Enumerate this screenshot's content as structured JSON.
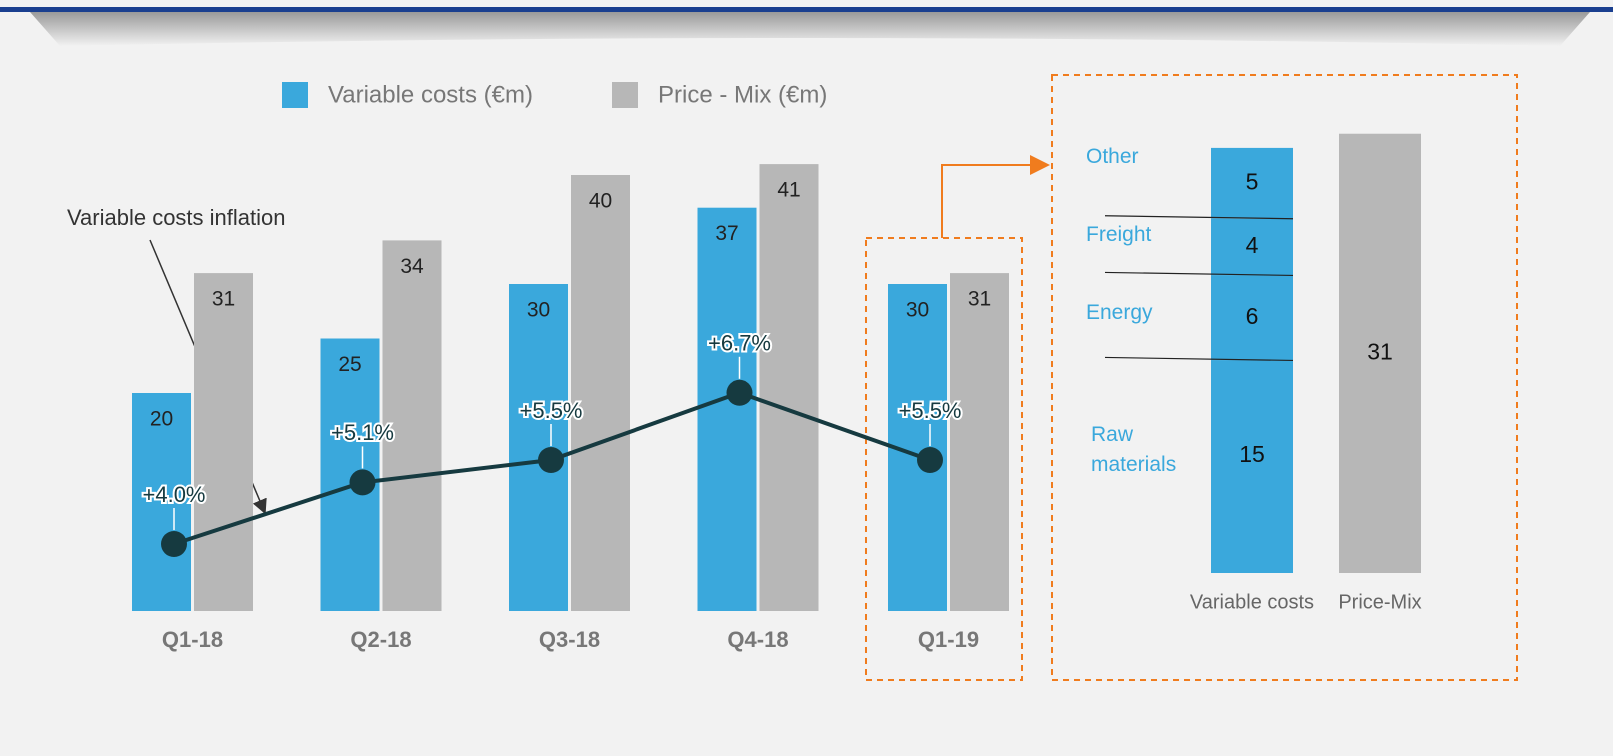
{
  "chart_data": [
    {
      "type": "bar",
      "categories": [
        "Q1-18",
        "Q2-18",
        "Q3-18",
        "Q4-18",
        "Q1-19"
      ],
      "series": [
        {
          "name": "Variable costs (€m)",
          "color": "#3aa8dc",
          "values": [
            20,
            25,
            30,
            37,
            30
          ]
        },
        {
          "name": "Price - Mix (€m)",
          "color": "#b7b7b7",
          "values": [
            31,
            34,
            40,
            41,
            31
          ]
        }
      ],
      "line": {
        "name": "Variable costs inflation",
        "color": "#163a40",
        "values": [
          4.0,
          5.1,
          5.5,
          6.7,
          5.5
        ],
        "value_labels": [
          "+4.0%",
          "+5.1%",
          "+5.5%",
          "+6.7%",
          "+5.5%"
        ]
      }
    },
    {
      "type": "stacked_bar",
      "categories": [
        "Variable costs",
        "Price-Mix"
      ],
      "series": [
        {
          "name": "Raw materials",
          "color": "#3aa8dc",
          "values": [
            15,
            null
          ]
        },
        {
          "name": "Energy",
          "color": "#3aa8dc",
          "values": [
            6,
            null
          ]
        },
        {
          "name": "Freight",
          "color": "#3aa8dc",
          "values": [
            4,
            null
          ]
        },
        {
          "name": "Other",
          "color": "#3aa8dc",
          "values": [
            5,
            null
          ]
        },
        {
          "color": "#b7b7b7",
          "values": [
            null,
            31
          ]
        }
      ]
    }
  ]
}
